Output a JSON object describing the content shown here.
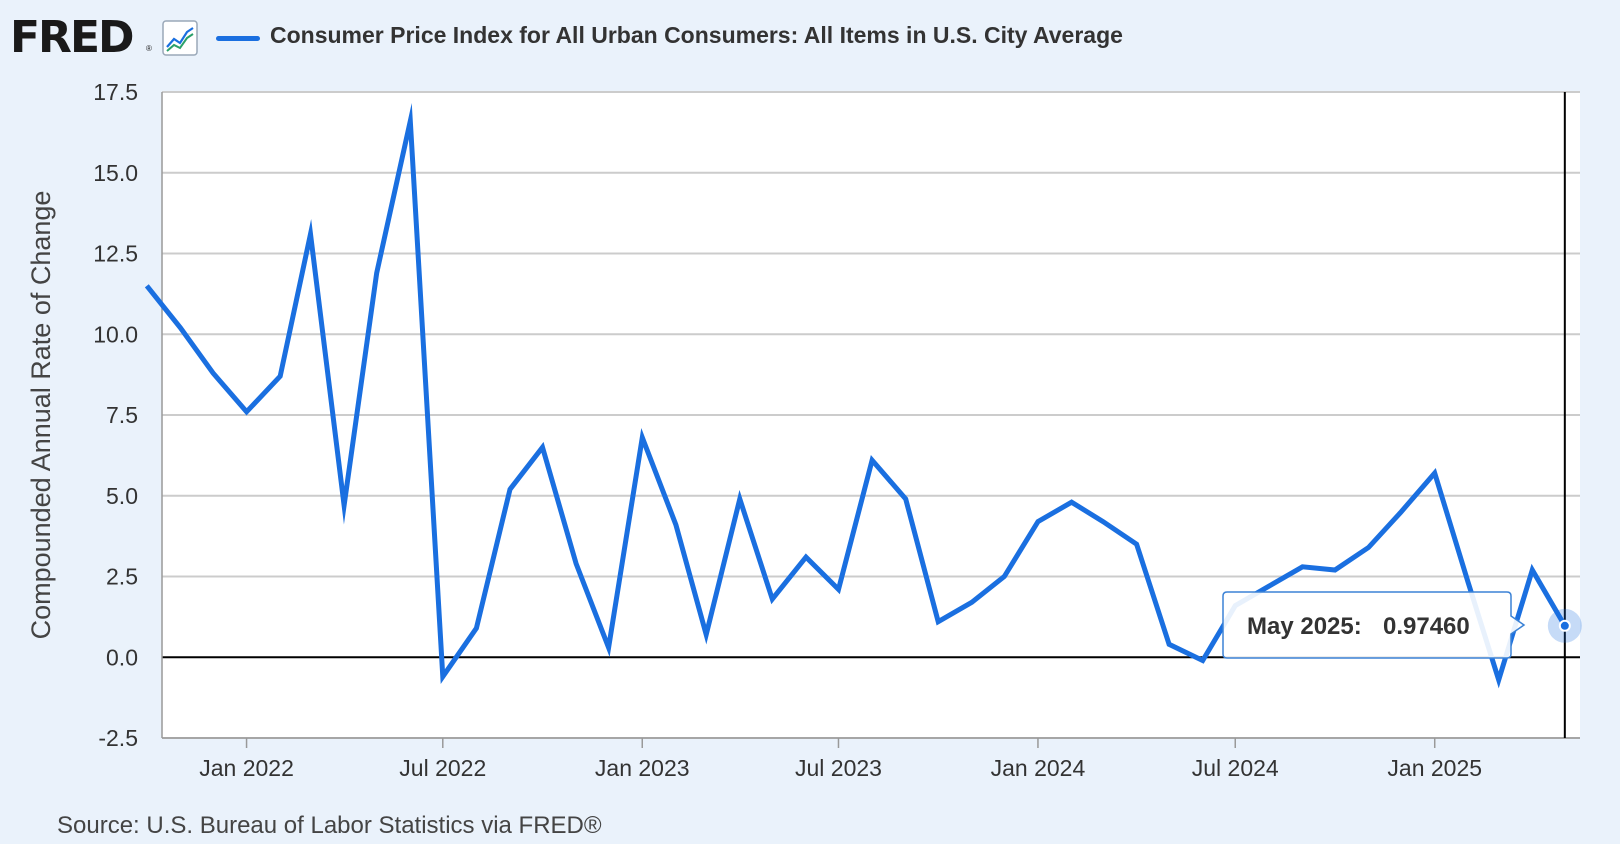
{
  "header": {
    "logo_text": "FRED",
    "reg_mark": "®",
    "icon": "line-graph-icon",
    "series_title": "Consumer Price Index for All Urban Consumers: All Items in U.S. City Average"
  },
  "footer": {
    "source": "Source: U.S. Bureau of Labor Statistics via FRED®"
  },
  "colors": {
    "series": "#1a6fe0",
    "background": "#eaf2fb",
    "plot_background": "#ffffff",
    "grid": "#cccccc"
  },
  "tooltip": {
    "label": "May 2025:",
    "value": "0.97460"
  },
  "chart_data": {
    "type": "line",
    "title": "Consumer Price Index for All Urban Consumers: All Items in U.S. City Average",
    "xlabel": "",
    "ylabel": "Compounded Annual Rate of Change",
    "ylim": [
      -2.5,
      17.5
    ],
    "xlim": [
      "2021-10-15",
      "2025-05-15"
    ],
    "grid": true,
    "legend": "top",
    "y_ticks": [
      "-2.5",
      "0.0",
      "2.5",
      "5.0",
      "7.5",
      "10.0",
      "12.5",
      "15.0",
      "17.5"
    ],
    "x_ticks": [
      {
        "date": "2022-01-01",
        "label": "Jan 2022"
      },
      {
        "date": "2022-07-01",
        "label": "Jul 2022"
      },
      {
        "date": "2023-01-01",
        "label": "Jan 2023"
      },
      {
        "date": "2023-07-01",
        "label": "Jul 2023"
      },
      {
        "date": "2024-01-01",
        "label": "Jan 2024"
      },
      {
        "date": "2024-07-01",
        "label": "Jul 2024"
      },
      {
        "date": "2025-01-01",
        "label": "Jan 2025"
      }
    ],
    "series": [
      {
        "x": [
          "2021-10-01",
          "2021-11-01",
          "2021-12-01",
          "2022-01-01",
          "2022-02-01",
          "2022-03-01",
          "2022-04-01",
          "2022-05-01",
          "2022-06-01",
          "2022-07-01",
          "2022-08-01",
          "2022-09-01",
          "2022-10-01",
          "2022-11-01",
          "2022-12-01",
          "2023-01-01",
          "2023-02-01",
          "2023-03-01",
          "2023-04-01",
          "2023-05-01",
          "2023-06-01",
          "2023-07-01",
          "2023-08-01",
          "2023-09-01",
          "2023-10-01",
          "2023-11-01",
          "2023-12-01",
          "2024-01-01",
          "2024-02-01",
          "2024-03-01",
          "2024-04-01",
          "2024-05-01",
          "2024-06-01",
          "2024-07-01",
          "2024-08-01",
          "2024-09-01",
          "2024-10-01",
          "2024-11-01",
          "2024-12-01",
          "2025-01-01",
          "2025-02-01",
          "2025-03-01",
          "2025-04-01",
          "2025-05-01"
        ],
        "values": [
          11.5,
          10.2,
          8.8,
          7.6,
          8.7,
          13.1,
          4.7,
          11.9,
          16.6,
          -0.6,
          0.9,
          5.2,
          6.5,
          2.9,
          0.3,
          6.8,
          4.1,
          0.7,
          4.9,
          1.8,
          3.1,
          2.1,
          6.1,
          4.9,
          1.1,
          1.7,
          2.5,
          4.2,
          4.8,
          4.2,
          3.5,
          0.4,
          -0.1,
          1.6,
          2.2,
          2.8,
          2.7,
          3.4,
          4.5,
          5.7,
          2.3,
          -0.7,
          2.7,
          0.9746
        ]
      }
    ]
  }
}
